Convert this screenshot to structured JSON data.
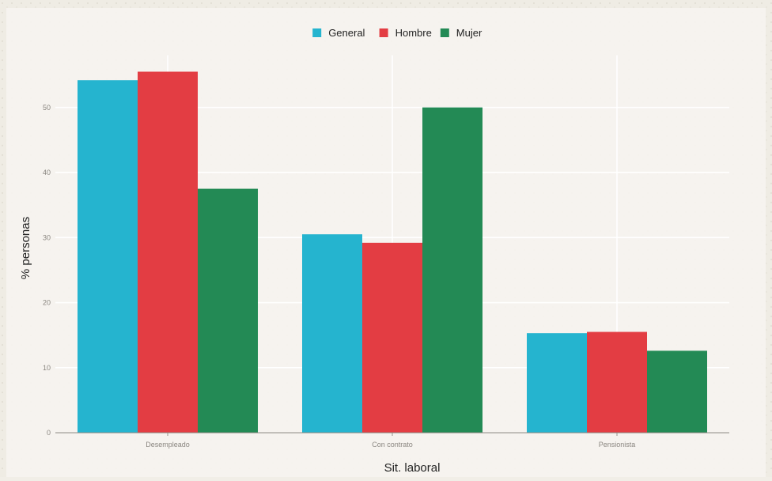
{
  "chart_data": {
    "type": "bar",
    "title": "",
    "xlabel": "Sit. laboral",
    "ylabel": "% personas",
    "categories": [
      "Desempleado",
      "Con contrato",
      "Pensionista"
    ],
    "series": [
      {
        "name": "General",
        "color": "#25b4cf",
        "values": [
          54.2,
          30.5,
          15.3
        ]
      },
      {
        "name": "Hombre",
        "color": "#e33d43",
        "values": [
          55.5,
          29.2,
          15.5
        ]
      },
      {
        "name": "Mujer",
        "color": "#238a55",
        "values": [
          37.5,
          50.0,
          12.6
        ]
      }
    ],
    "yticks": [
      "0",
      "10",
      "20",
      "30",
      "40",
      "50"
    ],
    "ylim": [
      0,
      58
    ],
    "legend_position": "top",
    "grid": true
  }
}
